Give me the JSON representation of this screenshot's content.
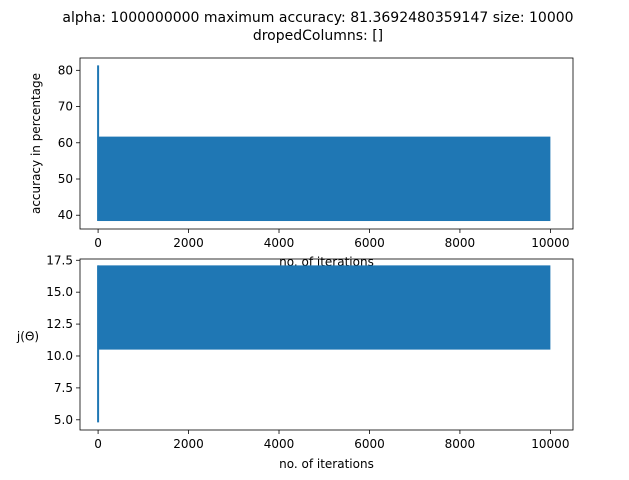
{
  "figure": {
    "title_line1": "alpha: 1000000000 maximum accuracy: 81.3692480359147 size: 10000",
    "title_line2": "dropedColumns: []"
  },
  "colors": {
    "series": "#1f77b4",
    "axes": "#000000",
    "background": "#ffffff"
  },
  "chart_data": [
    {
      "type": "line",
      "title": "",
      "xlabel": "no. of iterations",
      "ylabel": "accuracy in percentage",
      "xlim": [
        -400,
        10500
      ],
      "ylim": [
        36.2,
        83.4
      ],
      "grid": false,
      "xticks": [
        0,
        2000,
        4000,
        6000,
        8000,
        10000
      ],
      "xtick_labels": [
        "0",
        "2000",
        "4000",
        "6000",
        "8000",
        "10000"
      ],
      "yticks": [
        40,
        50,
        60,
        70,
        80
      ],
      "ytick_labels": [
        "40",
        "50",
        "60",
        "70",
        "80"
      ],
      "series": [
        {
          "x_start": 0,
          "x_end": 10000,
          "initial_spike": 81.37,
          "oscillation_low": 38.4,
          "oscillation_high": 61.7
        }
      ]
    },
    {
      "type": "line",
      "title": "",
      "xlabel": "no. of iterations",
      "ylabel": "j(Θ)",
      "xlim": [
        -400,
        10500
      ],
      "ylim": [
        4.2,
        17.6
      ],
      "grid": false,
      "xticks": [
        0,
        2000,
        4000,
        6000,
        8000,
        10000
      ],
      "xtick_labels": [
        "0",
        "2000",
        "4000",
        "6000",
        "8000",
        "10000"
      ],
      "yticks": [
        5.0,
        7.5,
        10.0,
        12.5,
        15.0,
        17.5
      ],
      "ytick_labels": [
        "5.0",
        "7.5",
        "10.0",
        "12.5",
        "15.0",
        "17.5"
      ],
      "series": [
        {
          "x_start": 0,
          "x_end": 10000,
          "initial_spike": 4.8,
          "oscillation_low": 10.5,
          "oscillation_high": 17.1
        }
      ]
    }
  ]
}
